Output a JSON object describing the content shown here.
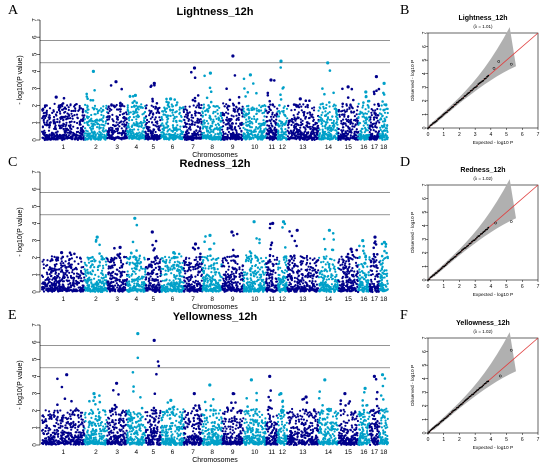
{
  "figure": {
    "colors": {
      "dark": "#00008b",
      "light": "#1e90ff",
      "cyan": "#00a0c8",
      "ref": "#e04040",
      "band": "#b0b0b0"
    }
  },
  "chart_data": [
    {
      "type": "scatter",
      "panel": "A",
      "title": "Lightness_12h",
      "xlabel": "Chromosomes",
      "ylabel": "- log10(P value)",
      "ylim": [
        0,
        7
      ],
      "yticks": [
        0,
        1,
        2,
        3,
        4,
        5,
        6,
        7
      ],
      "thresholds": [
        4.5,
        5.8
      ],
      "categories": [
        "1",
        "2",
        "3",
        "4",
        "5",
        "6",
        "7",
        "8",
        "9",
        "10",
        "11",
        "12",
        "13",
        "14",
        "15",
        "16",
        "17",
        "18"
      ],
      "peaks": [
        2.5,
        4.0,
        3.4,
        2.6,
        3.3,
        2.4,
        4.2,
        3.9,
        4.9,
        3.8,
        3.5,
        4.6,
        2.4,
        4.5,
        3.1,
        2.8,
        3.7,
        3.3
      ]
    },
    {
      "type": "scatter",
      "panel": "B",
      "title": "Lightness_12h",
      "lambda_label": "(λ = 1.01)",
      "xlabel": "Expected - log10 P",
      "ylabel": "Observed - log10 P",
      "xlim": [
        0,
        7
      ],
      "ylim": [
        0,
        7
      ],
      "ticks": [
        0,
        1,
        2,
        3,
        4,
        5,
        6,
        7
      ],
      "outliers": [
        [
          4.2,
          4.4
        ],
        [
          4.5,
          4.9
        ],
        [
          5.3,
          4.7
        ]
      ]
    },
    {
      "type": "scatter",
      "panel": "C",
      "title": "Redness_12h",
      "xlabel": "Chromosomes",
      "ylabel": "- log10(P value)",
      "ylim": [
        0,
        7
      ],
      "yticks": [
        0,
        1,
        2,
        3,
        4,
        5,
        6,
        7
      ],
      "thresholds": [
        4.5,
        5.8
      ],
      "categories": [
        "1",
        "2",
        "3",
        "4",
        "5",
        "6",
        "7",
        "8",
        "9",
        "10",
        "11",
        "12",
        "13",
        "14",
        "15",
        "16",
        "17",
        "18"
      ],
      "peaks": [
        2.3,
        3.2,
        2.6,
        4.3,
        3.5,
        2.3,
        2.8,
        3.3,
        3.5,
        4.1,
        4.0,
        4.1,
        3.6,
        3.6,
        2.5,
        3.0,
        3.2,
        2.9
      ]
    },
    {
      "type": "scatter",
      "panel": "D",
      "title": "Redness_12h",
      "lambda_label": "(λ = 1.02)",
      "xlabel": "Expected - log10 P",
      "ylabel": "Observed - log10 P",
      "xlim": [
        0,
        7
      ],
      "ylim": [
        0,
        7
      ],
      "ticks": [
        0,
        1,
        2,
        3,
        4,
        5,
        6,
        7
      ],
      "outliers": [
        [
          4.3,
          4.2
        ],
        [
          5.3,
          4.3
        ]
      ]
    },
    {
      "type": "scatter",
      "panel": "E",
      "title": "Yellowness_12h",
      "xlabel": "Chromosomes",
      "ylabel": "- log10(P value)",
      "ylim": [
        0,
        7
      ],
      "yticks": [
        0,
        1,
        2,
        3,
        4,
        5,
        6,
        7
      ],
      "thresholds": [
        4.5,
        5.8
      ],
      "categories": [
        "1",
        "2",
        "3",
        "4",
        "5",
        "6",
        "7",
        "8",
        "9",
        "10",
        "11",
        "12",
        "13",
        "14",
        "15",
        "16",
        "17",
        "18"
      ],
      "peaks": [
        4.1,
        3.0,
        3.6,
        6.5,
        6.1,
        2.6,
        3.0,
        3.5,
        3.0,
        3.8,
        4.0,
        3.0,
        2.8,
        3.8,
        3.0,
        3.3,
        4.0,
        4.1
      ]
    },
    {
      "type": "scatter",
      "panel": "F",
      "title": "Yellowness_12h",
      "lambda_label": "(λ = 1.02)",
      "xlabel": "Expected - log10 P",
      "ylabel": "Observed - log10 P",
      "xlim": [
        0,
        7
      ],
      "ylim": [
        0,
        7
      ],
      "ticks": [
        0,
        1,
        2,
        3,
        4,
        5,
        6,
        7
      ],
      "outliers": [
        [
          4.6,
          4.2
        ],
        [
          5.3,
          6.1
        ]
      ]
    }
  ]
}
